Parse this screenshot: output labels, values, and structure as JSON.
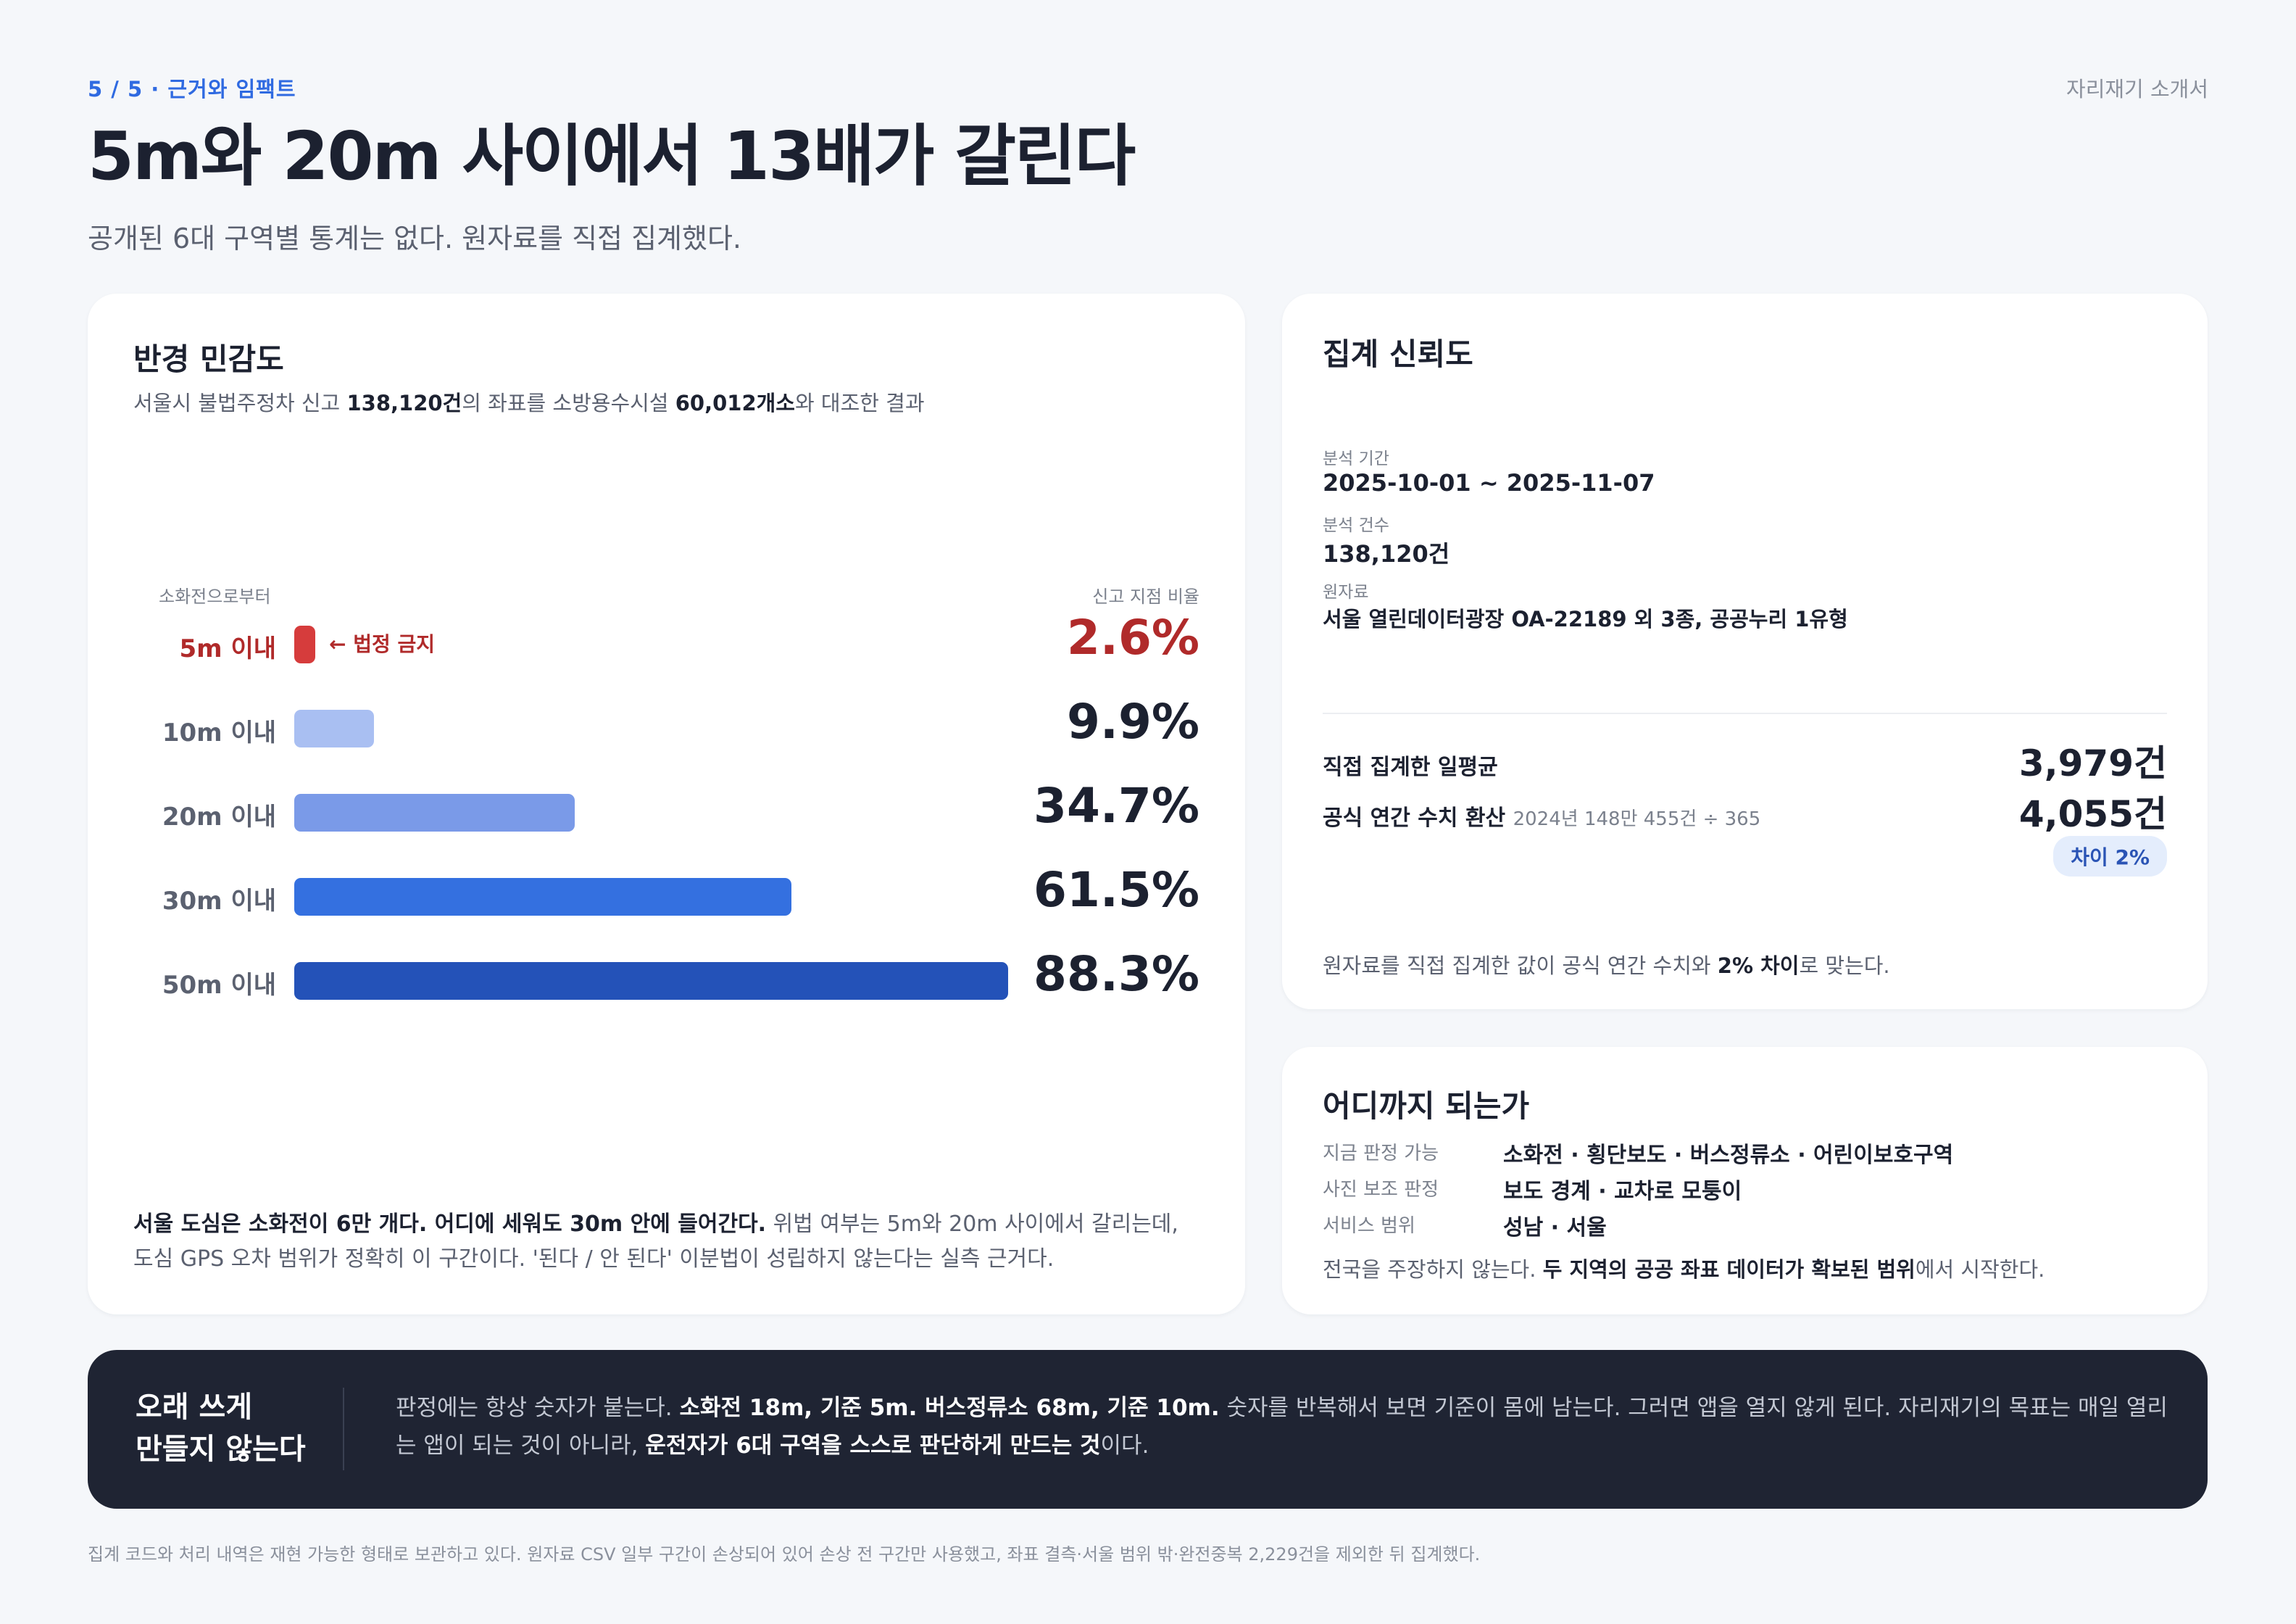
{
  "header": {
    "eyebrow": "5 / 5 · 근거와 임팩트",
    "brand": "자리재기 소개서",
    "title": "5m와 20m 사이에서 13배가 갈린다",
    "subtitle": "공개된 6대 구역별 통계는 없다. 원자료를 직접 집계했다."
  },
  "sensitivity": {
    "title": "반경 민감도",
    "desc_prefix": "서울시 불법주정차 신고 ",
    "desc_reports": "138,120건",
    "desc_mid": "의 좌표를 소방용수시설 ",
    "desc_hydrants": "60,012개소",
    "desc_suffix": "와 대조한 결과",
    "axis_left": "소화전으로부터",
    "axis_right": "신고 지점 비율",
    "legal_note": "← 법정 금지",
    "note_bold": "서울 도심은 소화전이 6만 개다. 어디에 세워도 30m 안에 들어간다.",
    "note_rest": " 위법 여부는 5m와 20m 사이에서 갈리는데, 도심 GPS 오차 범위가 정확히 이 구간이다. '된다 / 안 된다' 이분법이 성립하지 않는다는 실측 근거다."
  },
  "chart_data": {
    "type": "bar",
    "orientation": "horizontal",
    "categories": [
      "5m 이내",
      "10m 이내",
      "20m 이내",
      "30m 이내",
      "50m 이내"
    ],
    "values": [
      2.6,
      9.9,
      34.7,
      61.5,
      88.3
    ],
    "value_labels": [
      "2.6%",
      "9.9%",
      "34.7%",
      "61.5%",
      "88.3%"
    ],
    "xlim": [
      0,
      100
    ],
    "colors": [
      "#d63c3c",
      "#a9bff2",
      "#7a9ae8",
      "#3470e0",
      "#2452b8"
    ],
    "grid": false
  },
  "reliability": {
    "title": "집계 신뢰도",
    "period_label": "분석 기간",
    "period_value": "2025-10-01 ~ 2025-11-07",
    "count_label": "분석 건수",
    "count_value": "138,120건",
    "source_label": "원자료",
    "source_value": "서울 열린데이터광장 OA-22189 외 3종, 공공누리 1유형",
    "daily_label": "직접 집계한 일평균",
    "daily_value": "3,979건",
    "official_label": "공식 연간 수치 환산",
    "official_note": "2024년 148만 455건 ÷ 365",
    "official_value": "4,055건",
    "diff_badge": "차이 2%",
    "summary_prefix": "원자료를 직접 집계한 값이 공식 연간 수치와 ",
    "summary_bold": "2% 차이",
    "summary_suffix": "로 맞는다."
  },
  "scope": {
    "title": "어디까지 되는가",
    "rows": [
      {
        "label": "지금 판정 가능",
        "value": "소화전 · 횡단보도 · 버스정류소 · 어린이보호구역"
      },
      {
        "label": "사진 보조 판정",
        "value": "보도 경계 · 교차로 모퉁이"
      },
      {
        "label": "서비스 범위",
        "value": "성남 · 서울"
      }
    ],
    "note_prefix": "전국을 주장하지 않는다. ",
    "note_bold": "두 지역의 공공 좌표 데이터가 확보된 범위",
    "note_suffix": "에서 시작한다."
  },
  "banner": {
    "title_line1": "오래 쓰게",
    "title_line2": "만들지 않는다",
    "t1": "판정에는 항상 숫자가 붙는다. ",
    "b1": "소화전 18m, 기준 5m. 버스정류소 68m, 기준 10m.",
    "t2": " 숫자를 반복해서 보면 기준이 몸에 남는다. 그러면 앱을 열지 않게 된다. 자리재기의 목표는 매일 열리는 앱이 되는 것이 아니라, ",
    "b2": "운전자가 6대 구역을 스스로 판단하게 만드는 것",
    "t3": "이다."
  },
  "footnote": "집계 코드와 처리 내역은 재현 가능한 형태로 보관하고 있다. 원자료 CSV 일부 구간이 손상되어 있어 손상 전 구간만 사용했고, 좌표 결측·서울 범위 밖·완전중복 2,229건을 제외한 뒤 집계했다."
}
